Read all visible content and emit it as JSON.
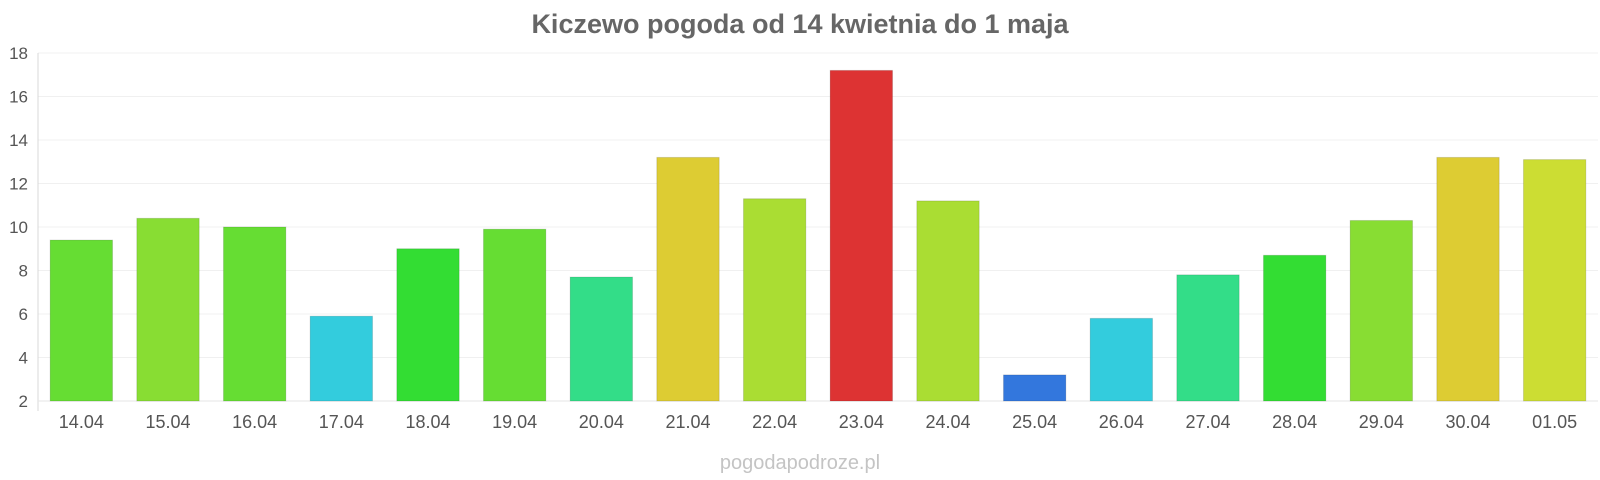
{
  "chart_data": {
    "type": "bar",
    "title": "Kiczewo pogoda od 14 kwietnia do 1 maja",
    "xlabel": "",
    "ylabel": "",
    "ylim": [
      2,
      18
    ],
    "yticks": [
      2,
      4,
      6,
      8,
      10,
      12,
      14,
      16,
      18
    ],
    "grid": true,
    "categories": [
      "14.04",
      "15.04",
      "16.04",
      "17.04",
      "18.04",
      "19.04",
      "20.04",
      "21.04",
      "22.04",
      "23.04",
      "24.04",
      "25.04",
      "26.04",
      "27.04",
      "28.04",
      "29.04",
      "30.04",
      "01.05"
    ],
    "values": [
      9.4,
      10.4,
      10.0,
      5.9,
      9.0,
      9.9,
      7.7,
      13.2,
      11.3,
      17.2,
      11.2,
      3.2,
      5.8,
      7.8,
      8.7,
      10.3,
      13.2,
      13.1
    ],
    "colors": [
      "#66dd33",
      "#88dd33",
      "#66dd33",
      "#33ccdd",
      "#33dd33",
      "#66dd33",
      "#33dd88",
      "#ddcc33",
      "#aadd33",
      "#dd3333",
      "#aadd33",
      "#3377dd",
      "#33ccdd",
      "#33dd88",
      "#33dd33",
      "#88dd33",
      "#ddcc33",
      "#ccdd33"
    ]
  },
  "footer": "pogodapodroze.pl"
}
